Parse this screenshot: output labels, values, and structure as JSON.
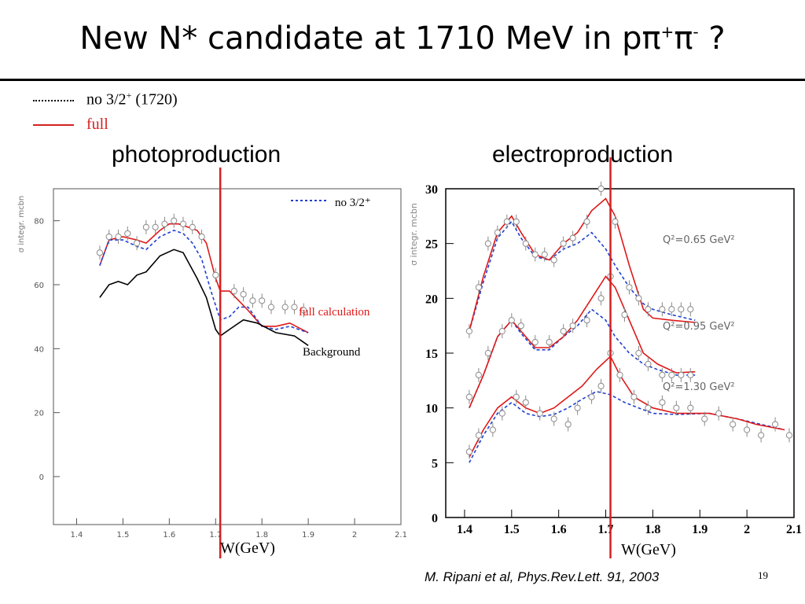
{
  "slide": {
    "title": "New N* candidate at 1710 MeV in pπ⁺π⁻ ?",
    "title_main": "New N* candidate at 1710 MeV in pπ",
    "title_sup1": "+",
    "title_mid": "π",
    "title_sup2": "-",
    "title_end": " ?",
    "legend": [
      {
        "label": "no 3/2",
        "sup": "+",
        "suffix": " (1720)",
        "color": "#000000",
        "style": "dotted"
      },
      {
        "label": "full",
        "sup": "",
        "suffix": "",
        "color": "#d62020",
        "style": "solid"
      }
    ],
    "citation": "M. Ripani et al, Phys.Rev.Lett. 91, 2003",
    "page_number": "19"
  },
  "colors": {
    "full": "#e01818",
    "no32": "#1f3fd0",
    "background": "#000000",
    "marker": "#d62020"
  },
  "chart_data": [
    {
      "type": "line",
      "panel_title": "photoproduction",
      "ylabel": "σ integr. mcbn",
      "xlabel": "W(GeV)",
      "xlim": [
        1.35,
        2.1
      ],
      "ylim": [
        -15,
        90
      ],
      "xticks": [
        "1.4",
        "1.5",
        "1.6",
        "1.7",
        "1.8",
        "1.9",
        "2",
        "2.1"
      ],
      "yticks": [
        "0",
        "20",
        "40",
        "60",
        "80"
      ],
      "marker_W": 1.71,
      "legend_label": "no 3/2⁺",
      "annotations": [
        "full calculation",
        "Background"
      ],
      "series": [
        {
          "name": "full calculation",
          "color": "#e01818",
          "dash": false,
          "x": [
            1.45,
            1.47,
            1.5,
            1.53,
            1.55,
            1.58,
            1.6,
            1.62,
            1.64,
            1.66,
            1.68,
            1.7,
            1.71,
            1.73,
            1.75,
            1.77,
            1.8,
            1.83,
            1.86,
            1.9
          ],
          "y": [
            66,
            74,
            75,
            74,
            73,
            77,
            79,
            79,
            78,
            77,
            73,
            62,
            58,
            58,
            55,
            52,
            47,
            47,
            48,
            45
          ]
        },
        {
          "name": "no 3/2⁺",
          "color": "#1f3fd0",
          "dash": true,
          "x": [
            1.45,
            1.47,
            1.5,
            1.53,
            1.55,
            1.58,
            1.61,
            1.63,
            1.65,
            1.67,
            1.69,
            1.71,
            1.73,
            1.75,
            1.77,
            1.8,
            1.83,
            1.86,
            1.9
          ],
          "y": [
            66,
            74,
            74,
            72,
            71,
            75,
            77,
            76,
            73,
            68,
            58,
            49,
            50,
            53,
            53,
            47,
            46,
            47,
            45
          ]
        },
        {
          "name": "Background",
          "color": "#000000",
          "dash": false,
          "x": [
            1.45,
            1.47,
            1.49,
            1.51,
            1.53,
            1.55,
            1.58,
            1.61,
            1.63,
            1.66,
            1.68,
            1.7,
            1.71,
            1.73,
            1.76,
            1.79,
            1.83,
            1.87,
            1.9
          ],
          "y": [
            56,
            60,
            61,
            60,
            63,
            64,
            69,
            71,
            70,
            62,
            56,
            46,
            44,
            46,
            49,
            48,
            45,
            44,
            41
          ]
        }
      ],
      "points": {
        "x": [
          1.45,
          1.47,
          1.49,
          1.51,
          1.53,
          1.55,
          1.57,
          1.59,
          1.61,
          1.63,
          1.65,
          1.67,
          1.7,
          1.74,
          1.76,
          1.78,
          1.8,
          1.82,
          1.85,
          1.87,
          1.89
        ],
        "y": [
          70,
          75,
          75,
          76,
          73,
          78,
          78,
          79,
          80,
          79,
          78,
          75,
          63,
          58,
          57,
          55,
          55,
          53,
          53,
          53,
          52
        ]
      }
    },
    {
      "type": "line",
      "panel_title": "electroproduction",
      "ylabel": "σ integr. mcbn",
      "xlabel": "W(GeV)",
      "xlim": [
        1.36,
        2.1
      ],
      "ylim": [
        0,
        30
      ],
      "xticks": [
        "1.4",
        "1.5",
        "1.6",
        "1.7",
        "1.8",
        "1.9",
        "2",
        "2.1"
      ],
      "yticks": [
        "0",
        "5",
        "10",
        "15",
        "20",
        "25",
        "30"
      ],
      "marker_W": 1.71,
      "q2_labels": [
        "Q²=0.65 GeV²",
        "Q²=0.95 GeV²",
        "Q²=1.30 GeV²"
      ],
      "groups": [
        {
          "label": "Q²=0.65 GeV²",
          "full": {
            "x": [
              1.41,
              1.44,
              1.47,
              1.5,
              1.52,
              1.55,
              1.58,
              1.61,
              1.64,
              1.67,
              1.7,
              1.72,
              1.75,
              1.78,
              1.8,
              1.84,
              1.89
            ],
            "y": [
              17,
              22,
              26,
              27.5,
              26,
              24,
              23.5,
              25,
              26,
              28,
              29.1,
              27.5,
              23,
              19,
              18.2,
              18,
              17.8
            ]
          },
          "no32": {
            "x": [
              1.41,
              1.44,
              1.47,
              1.5,
              1.52,
              1.55,
              1.58,
              1.61,
              1.64,
              1.67,
              1.7,
              1.72,
              1.75,
              1.78,
              1.8,
              1.84,
              1.89
            ],
            "y": [
              17,
              21.5,
              25.5,
              27,
              25.5,
              23.8,
              23.5,
              24.5,
              25,
              26,
              24.5,
              23,
              21,
              19.5,
              19,
              18.5,
              18
            ]
          },
          "points": {
            "x": [
              1.41,
              1.43,
              1.45,
              1.47,
              1.49,
              1.51,
              1.53,
              1.55,
              1.57,
              1.59,
              1.61,
              1.63,
              1.66,
              1.69,
              1.72,
              1.75,
              1.77,
              1.79,
              1.82,
              1.84,
              1.86,
              1.88
            ],
            "y": [
              17,
              21,
              25,
              26,
              27,
              27,
              25,
              24,
              24,
              23.5,
              25,
              25.5,
              27,
              30,
              27,
              21,
              20,
              19,
              19,
              19,
              19,
              19
            ]
          }
        },
        {
          "label": "Q²=0.95 GeV²",
          "full": {
            "x": [
              1.41,
              1.44,
              1.47,
              1.5,
              1.52,
              1.55,
              1.58,
              1.61,
              1.64,
              1.67,
              1.7,
              1.72,
              1.75,
              1.78,
              1.81,
              1.85,
              1.89
            ],
            "y": [
              10,
              13,
              16.5,
              18,
              17,
              15.5,
              15.5,
              16.5,
              18,
              20,
              22,
              21,
              18,
              15,
              14,
              13.2,
              13.3
            ]
          },
          "no32": {
            "x": [
              1.41,
              1.44,
              1.47,
              1.5,
              1.52,
              1.55,
              1.58,
              1.61,
              1.64,
              1.67,
              1.7,
              1.72,
              1.75,
              1.78,
              1.81,
              1.85,
              1.89
            ],
            "y": [
              10,
              13,
              16.5,
              18,
              16.8,
              15.3,
              15.3,
              16.5,
              17.5,
              19,
              18,
              16.5,
              15,
              14,
              13.5,
              13,
              13
            ]
          },
          "points": {
            "x": [
              1.41,
              1.43,
              1.45,
              1.48,
              1.5,
              1.52,
              1.55,
              1.58,
              1.61,
              1.63,
              1.66,
              1.69,
              1.71,
              1.74,
              1.77,
              1.79,
              1.82,
              1.84,
              1.86,
              1.88
            ],
            "y": [
              11,
              13,
              15,
              17,
              18,
              17.5,
              16,
              16,
              17,
              17.5,
              18,
              20,
              22,
              18.5,
              15,
              14,
              13,
              13,
              13,
              13
            ]
          }
        },
        {
          "label": "Q²=1.30 GeV²",
          "full": {
            "x": [
              1.41,
              1.44,
              1.47,
              1.5,
              1.53,
              1.56,
              1.59,
              1.62,
              1.65,
              1.68,
              1.71,
              1.73,
              1.76,
              1.8,
              1.85,
              1.92,
              1.98,
              2.02,
              2.08
            ],
            "y": [
              5.5,
              8,
              10,
              11,
              10,
              9.5,
              10,
              11,
              12,
              13.5,
              14.7,
              13,
              11,
              10,
              9.5,
              9.5,
              9,
              8.5,
              8
            ]
          },
          "no32": {
            "x": [
              1.41,
              1.44,
              1.47,
              1.5,
              1.53,
              1.56,
              1.59,
              1.62,
              1.65,
              1.68,
              1.71,
              1.74,
              1.77,
              1.8,
              1.85,
              1.92,
              1.98,
              2.03,
              2.08
            ],
            "y": [
              5,
              7.5,
              9.5,
              10.5,
              9.5,
              9.2,
              9.4,
              10,
              10.8,
              11.5,
              11.2,
              10.5,
              10,
              9.5,
              9.4,
              9.5,
              9,
              8.5,
              8
            ]
          },
          "points": {
            "x": [
              1.41,
              1.43,
              1.46,
              1.48,
              1.51,
              1.53,
              1.56,
              1.59,
              1.62,
              1.64,
              1.67,
              1.69,
              1.71,
              1.73,
              1.76,
              1.79,
              1.82,
              1.85,
              1.88,
              1.91,
              1.94,
              1.97,
              2.0,
              2.03,
              2.06,
              2.09
            ],
            "y": [
              6,
              7.5,
              8,
              9.5,
              11,
              10.5,
              9.5,
              9,
              8.5,
              10,
              11,
              12,
              15,
              13,
              11,
              10,
              10.5,
              10,
              10,
              9,
              9.5,
              8.5,
              8,
              7.5,
              8.5,
              7.5
            ]
          }
        }
      ]
    }
  ]
}
